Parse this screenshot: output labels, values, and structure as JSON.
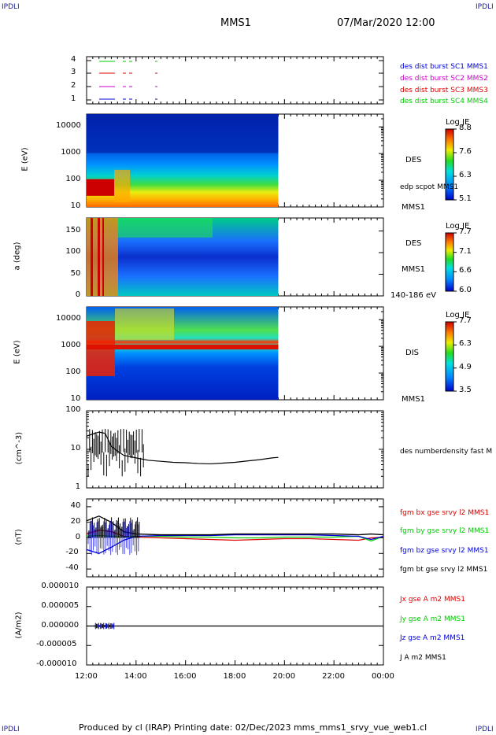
{
  "corners": {
    "tl": "IPDLI",
    "tr": "IPDLI",
    "bl": "IPDLI",
    "br": "IPDLI"
  },
  "header": {
    "spacecraft": "MMS1",
    "datetime": "07/Mar/2020 12:00"
  },
  "footer": "Produced by cl (IRAP)   Printing date: 02/Dec/2023   mms_mms1_srvy_vue_web1.cl",
  "colors": {
    "red": "#dd0000",
    "green": "#00cc00",
    "blue": "#0000dd",
    "magenta": "#cc00cc",
    "black": "#000000"
  },
  "chart_data": [
    {
      "type": "line",
      "title": "",
      "ylabel": "",
      "yticks": [
        "1",
        "2",
        "3",
        "4"
      ],
      "legend": [
        {
          "label": "des dist burst SC1 MMS1",
          "color": "#0000dd"
        },
        {
          "label": "des dist burst SC2 MMS2",
          "color": "#cc00cc"
        },
        {
          "label": "des dist burst SC3 MMS3",
          "color": "#dd0000"
        },
        {
          "label": "des dist burst SC4 MMS4",
          "color": "#00cc00"
        }
      ]
    },
    {
      "type": "heatmap",
      "ylabel": "E (eV)",
      "yscale": "log",
      "ylim": [
        10,
        30000
      ],
      "yticks": [
        "10",
        "100",
        "1000",
        "10000"
      ],
      "instrument": "DES",
      "spacecraft": "MMS1",
      "extra_label": "edp scpot MMS1",
      "colorbar": {
        "title": "Log JE",
        "ticks": [
          "8.8",
          "7.6",
          "6.3",
          "5.1"
        ]
      },
      "data_end": "19:45"
    },
    {
      "type": "heatmap",
      "ylabel": "a (deg)",
      "ylim": [
        0,
        180
      ],
      "yticks": [
        "0",
        "50",
        "100",
        "150"
      ],
      "instrument": "DES",
      "spacecraft": "MMS1",
      "energy_range": "140-186 eV",
      "colorbar": {
        "title": "Log JE",
        "ticks": [
          "7.7",
          "7.1",
          "6.6",
          "6.0"
        ]
      },
      "data_end": "19:45"
    },
    {
      "type": "heatmap",
      "ylabel": "E (eV)",
      "yscale": "log",
      "ylim": [
        10,
        30000
      ],
      "yticks": [
        "10",
        "100",
        "1000",
        "10000"
      ],
      "instrument": "DIS",
      "spacecraft": "MMS1",
      "colorbar": {
        "title": "Log JE",
        "ticks": [
          "7.7",
          "6.3",
          "4.9",
          "3.5"
        ]
      },
      "data_end": "19:45"
    },
    {
      "type": "line",
      "ylabel": "(cm^-3)",
      "yscale": "log",
      "ylim": [
        1,
        100
      ],
      "yticks": [
        "1",
        "10",
        "100"
      ],
      "series": [
        {
          "name": "des numberdensity fast M",
          "color": "#000000",
          "x": [
            "12:00",
            "12:15",
            "12:30",
            "12:45",
            "13:00",
            "13:15",
            "13:30",
            "14:00",
            "14:30",
            "15:00",
            "15:30",
            "16:00",
            "16:30",
            "17:00",
            "17:30",
            "18:00",
            "18:30",
            "19:00",
            "19:30",
            "19:45"
          ],
          "y": [
            22,
            25,
            28,
            26,
            12,
            9,
            7,
            6,
            5.2,
            4.9,
            4.6,
            4.5,
            4.3,
            4.2,
            4.4,
            4.6,
            5.0,
            5.4,
            6.0,
            6.2
          ]
        }
      ]
    },
    {
      "type": "line",
      "ylabel": "(nT)",
      "ylim": [
        -50,
        50
      ],
      "yticks": [
        "-40",
        "-20",
        "0",
        "20",
        "40"
      ],
      "x": [
        "12:00",
        "12:30",
        "13:00",
        "13:30",
        "14:00",
        "15:00",
        "16:00",
        "17:00",
        "18:00",
        "19:00",
        "20:00",
        "21:00",
        "22:00",
        "23:00",
        "23:30",
        "00:00"
      ],
      "series": [
        {
          "name": "fgm bx gse srvy l2 MMS1",
          "color": "#dd0000",
          "values": [
            5,
            10,
            8,
            2,
            1,
            0,
            -1,
            -2,
            -3,
            -2,
            -1,
            -1,
            -2,
            -3,
            0,
            1
          ]
        },
        {
          "name": "fgm by gse srvy l2 MMS1",
          "color": "#00cc00",
          "values": [
            2,
            3,
            2,
            1,
            2,
            2,
            1,
            1,
            0,
            0,
            1,
            1,
            1,
            2,
            -4,
            2
          ]
        },
        {
          "name": "fgm bz gse srvy l2 MMS1",
          "color": "#0000dd",
          "values": [
            -15,
            -20,
            -12,
            -3,
            2,
            3,
            3,
            3,
            4,
            4,
            4,
            4,
            3,
            2,
            -2,
            2
          ]
        },
        {
          "name": "fgm bt gse srvy l2 MMS1",
          "color": "#000000",
          "values": [
            22,
            28,
            20,
            8,
            5,
            4,
            4,
            4,
            5,
            5,
            5,
            5,
            5,
            4,
            5,
            4
          ]
        }
      ]
    },
    {
      "type": "line",
      "ylabel": "(A/m2)",
      "ylim": [
        -1e-05,
        1e-05
      ],
      "yticks": [
        "0.000010",
        "0.000005",
        "0.000000",
        "-0.000005",
        "-0.000010"
      ],
      "xticks": [
        "12:00",
        "14:00",
        "16:00",
        "18:00",
        "20:00",
        "22:00",
        "00:00"
      ],
      "series": [
        {
          "name": "Jx gse A m2 MMS1",
          "color": "#dd0000"
        },
        {
          "name": "Jy gse A m2 MMS1",
          "color": "#00cc00"
        },
        {
          "name": "Jz gse A m2 MMS1",
          "color": "#0000dd"
        },
        {
          "name": "J A m2 MMS1",
          "color": "#000000"
        }
      ]
    }
  ]
}
